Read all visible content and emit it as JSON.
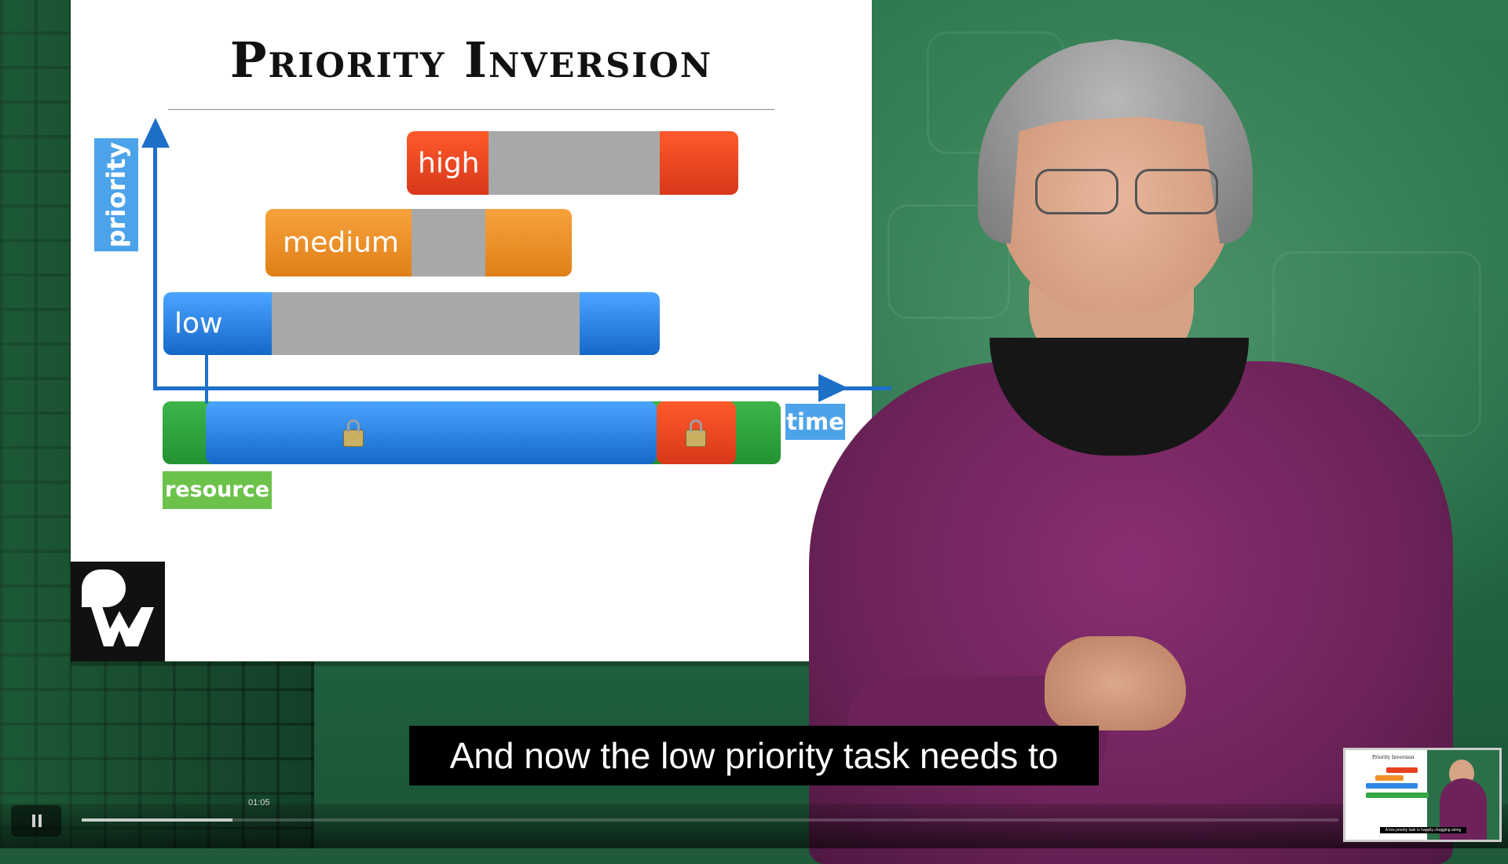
{
  "slide": {
    "title": "Priority Inversion",
    "axis_y_label": "priority",
    "axis_x_label": "time",
    "resource_label": "resource",
    "tasks": {
      "high_label": "high",
      "medium_label": "medium",
      "low_label": "low"
    },
    "colors": {
      "high": "#e8401f",
      "medium": "#f0902a",
      "low": "#2e86e6",
      "blocked": "#a7a9a8",
      "resource": "#34a845",
      "axis": "#1e6fc8"
    },
    "icons": [
      "lock-icon",
      "lock-icon",
      "raywenderlich-logo"
    ]
  },
  "subtitle": {
    "text": "And now the low priority task needs to"
  },
  "player": {
    "time_tooltip": "01:05",
    "progress_fraction": 0.12,
    "thumbnail": {
      "title": "Priority Inversion",
      "caption": "A low priority task is happily chugging along"
    }
  }
}
